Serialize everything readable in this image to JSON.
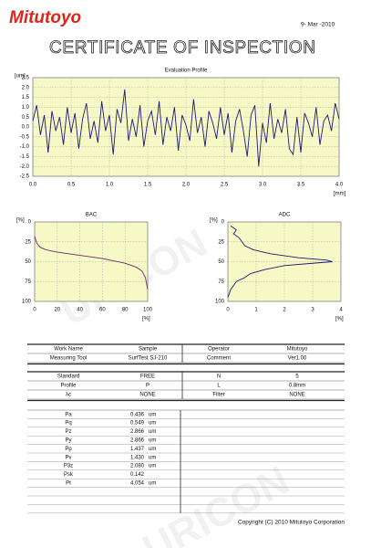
{
  "header": {
    "logo": "Mitutoyo",
    "date": "9- Mar -2010",
    "title": "CERTIFICATE OF INSPECTION"
  },
  "watermark": "URICON",
  "charts": [
    {
      "type": "line",
      "title": "Evaluation Profile",
      "y_unit": "[um]",
      "x_unit": "[mm]",
      "color": "#1a1a78",
      "grid": true,
      "x": [
        0,
        0.05,
        0.1,
        0.15,
        0.2,
        0.25,
        0.3,
        0.35,
        0.4,
        0.45,
        0.5,
        0.55,
        0.6,
        0.65,
        0.7,
        0.75,
        0.8,
        0.85,
        0.9,
        0.95,
        1,
        1.05,
        1.1,
        1.15,
        1.2,
        1.25,
        1.3,
        1.35,
        1.4,
        1.45,
        1.5,
        1.55,
        1.6,
        1.65,
        1.7,
        1.75,
        1.8,
        1.85,
        1.9,
        1.95,
        2,
        2.05,
        2.1,
        2.15,
        2.2,
        2.25,
        2.3,
        2.35,
        2.4,
        2.45,
        2.5,
        2.55,
        2.6,
        2.65,
        2.7,
        2.75,
        2.8,
        2.85,
        2.9,
        2.95,
        3,
        3.05,
        3.1,
        3.15,
        3.2,
        3.25,
        3.3,
        3.35,
        3.4,
        3.45,
        3.5,
        3.55,
        3.6,
        3.65,
        3.7,
        3.75,
        3.8,
        3.85,
        3.9,
        3.95,
        4
      ],
      "values": [
        0.3,
        1.1,
        -0.4,
        0.6,
        -1.3,
        0.8,
        -0.2,
        0.5,
        -0.9,
        1.0,
        -0.3,
        0.7,
        -1.1,
        0.4,
        1.2,
        -0.6,
        0.3,
        -0.8,
        1.3,
        -0.2,
        0.6,
        -1.4,
        0.9,
        0.2,
        1.9,
        -0.7,
        0.4,
        -0.5,
        1.1,
        -1.0,
        0.3,
        0.8,
        -0.4,
        1.3,
        -0.9,
        0.5,
        -0.2,
        1.0,
        -1.2,
        0.6,
        0.1,
        -0.7,
        1.4,
        -0.3,
        0.5,
        -1.0,
        0.8,
        0.2,
        -0.6,
        1.0,
        -0.4,
        0.7,
        -1.3,
        0.3,
        0.9,
        -0.2,
        -1.5,
        0.6,
        1.1,
        -2.0,
        0.2,
        -0.8,
        1.2,
        -0.6,
        0.4,
        -0.3,
        0.9,
        -1.1,
        -1.4,
        0.5,
        -1.3,
        0.7,
        0.2,
        -0.5,
        1.0,
        -0.9,
        0.3,
        0.6,
        -0.2,
        1.2,
        0.4
      ],
      "xlim": [
        0,
        4
      ],
      "ylim": [
        -2.5,
        2.5
      ],
      "xticks": [
        {
          "value": 0,
          "label": "0.0"
        },
        0.5,
        {
          "value": 1,
          "label": "1.0"
        },
        1.5,
        {
          "value": 2,
          "label": "2.0"
        },
        2.5,
        {
          "value": 3,
          "label": "3.0"
        },
        3.5,
        {
          "value": 4,
          "label": "4.0"
        }
      ],
      "yticks": [
        -2.5,
        {
          "value": -2,
          "label": "-2.0"
        },
        -1.5,
        {
          "value": -1,
          "label": "-1.0"
        },
        -0.5,
        {
          "value": 0,
          "label": "0.0"
        },
        0.5,
        {
          "value": 1,
          "label": "1.0"
        },
        1.5,
        {
          "value": 2,
          "label": "2.0"
        },
        2.5
      ]
    },
    {
      "type": "line",
      "title": "BAC",
      "y_unit": "[%]",
      "x_unit": "[%]",
      "color": "#6a2a72",
      "grid": true,
      "y_inverted": true,
      "x": [
        0,
        2,
        5,
        10,
        20,
        30,
        40,
        50,
        60,
        70,
        80,
        90,
        95,
        98,
        100
      ],
      "values": [
        18,
        27,
        32,
        35,
        38,
        40,
        42,
        44,
        46,
        49,
        52,
        57,
        62,
        70,
        85
      ],
      "xlim": [
        0,
        100
      ],
      "ylim": [
        0,
        100
      ],
      "xticks": [
        0,
        20,
        40,
        60,
        80,
        100
      ],
      "yticks": [
        0,
        25,
        50,
        75,
        100
      ]
    },
    {
      "type": "line",
      "title": "ADC",
      "y_unit": "[%]",
      "x_unit": "[%]",
      "color": "#1a1a78",
      "grid": true,
      "y_inverted": true,
      "orientation": "horizontal",
      "y": [
        5,
        10,
        15,
        20,
        25,
        30,
        35,
        40,
        45,
        48,
        50,
        52,
        55,
        60,
        65,
        70,
        75,
        80,
        85,
        90,
        95
      ],
      "values": [
        0.1,
        0.3,
        0.2,
        0.4,
        0.5,
        0.6,
        0.9,
        1.5,
        2.5,
        3.5,
        3.7,
        3.0,
        2.0,
        1.3,
        0.8,
        0.6,
        0.3,
        0.2,
        0.1,
        0.05,
        0
      ],
      "xlim": [
        0,
        4
      ],
      "ylim": [
        0,
        100
      ],
      "xticks": [
        0,
        1,
        2,
        3,
        4
      ],
      "yticks": [
        0,
        25,
        50,
        75,
        100
      ]
    }
  ],
  "info_table": {
    "rows": [
      [
        "Work Name",
        "Sample",
        "Operator",
        "Mitutoyo"
      ],
      [
        "Measuring Tool",
        "SurfTest SJ-210",
        "Comment",
        "Ver1.00"
      ]
    ]
  },
  "conditions_table": {
    "rows": [
      [
        "Standard",
        "FREE",
        "N",
        "5"
      ],
      [
        "Profile",
        "P",
        "L",
        "0.8mm"
      ],
      [
        "λc",
        "NONE",
        "Filter",
        "NONE"
      ]
    ]
  },
  "results_table": {
    "rows": [
      [
        "Pa",
        "0.436",
        "um"
      ],
      [
        "Pq",
        "0.549",
        "um"
      ],
      [
        "Pz",
        "2.866",
        "um"
      ],
      [
        "Py",
        "2.866",
        "um"
      ],
      [
        "Pp",
        "1.437",
        "um"
      ],
      [
        "Pv",
        "1.430",
        "um"
      ],
      [
        "P3z",
        "2.080",
        "um"
      ],
      [
        "Psk",
        "0.142"
      ],
      [
        "Pt",
        "4.054",
        "um"
      ]
    ]
  },
  "footer": {
    "copyright": "Copyright (C) 2010 Mitutoyo Corporation"
  }
}
